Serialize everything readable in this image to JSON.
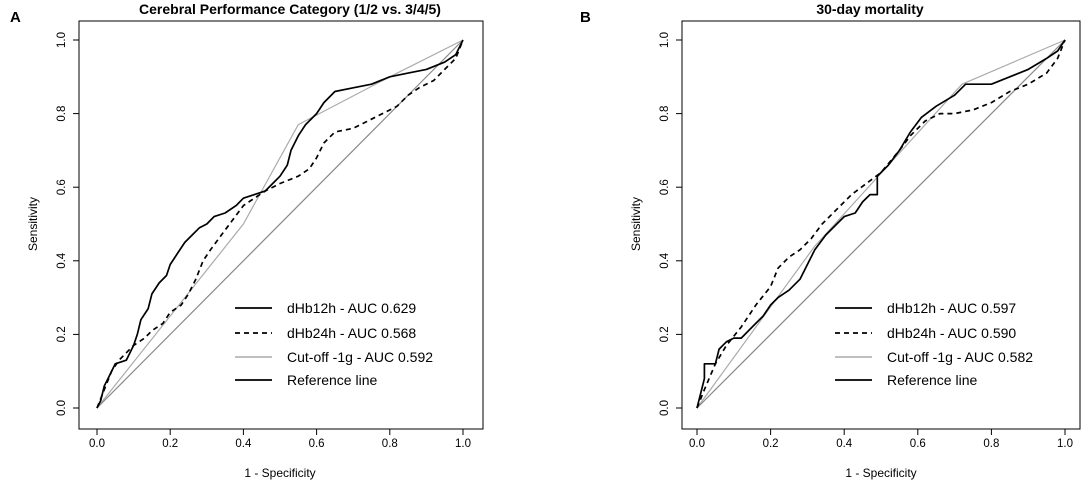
{
  "chart_data": [
    {
      "type": "line",
      "panel_label": "A",
      "title": "Cerebral Performance Category (1/2 vs. 3/4/5)",
      "xlabel": "1 - Specificity",
      "ylabel": "Sensitivity",
      "xlim": [
        0,
        1
      ],
      "ylim": [
        0,
        1
      ],
      "x_ticks": [
        "0.0",
        "0.2",
        "0.4",
        "0.6",
        "0.8",
        "1.0"
      ],
      "y_ticks": [
        "0.0",
        "0.2",
        "0.4",
        "0.6",
        "0.8",
        "1.0"
      ],
      "grid": false,
      "legend_position": "bottom-right",
      "series": [
        {
          "name": "dHb12h - AUC 0.629",
          "color": "#000000",
          "dash": "solid",
          "points": [
            [
              0,
              0
            ],
            [
              0.01,
              0.02
            ],
            [
              0.02,
              0.06
            ],
            [
              0.03,
              0.08
            ],
            [
              0.04,
              0.1
            ],
            [
              0.05,
              0.12
            ],
            [
              0.08,
              0.13
            ],
            [
              0.1,
              0.17
            ],
            [
              0.11,
              0.2
            ],
            [
              0.12,
              0.24
            ],
            [
              0.14,
              0.27
            ],
            [
              0.15,
              0.31
            ],
            [
              0.17,
              0.34
            ],
            [
              0.19,
              0.36
            ],
            [
              0.2,
              0.39
            ],
            [
              0.22,
              0.42
            ],
            [
              0.24,
              0.45
            ],
            [
              0.26,
              0.47
            ],
            [
              0.28,
              0.49
            ],
            [
              0.3,
              0.5
            ],
            [
              0.32,
              0.52
            ],
            [
              0.35,
              0.53
            ],
            [
              0.38,
              0.55
            ],
            [
              0.4,
              0.57
            ],
            [
              0.43,
              0.58
            ],
            [
              0.46,
              0.59
            ],
            [
              0.48,
              0.61
            ],
            [
              0.5,
              0.63
            ],
            [
              0.52,
              0.66
            ],
            [
              0.53,
              0.7
            ],
            [
              0.55,
              0.74
            ],
            [
              0.57,
              0.77
            ],
            [
              0.6,
              0.8
            ],
            [
              0.62,
              0.83
            ],
            [
              0.65,
              0.86
            ],
            [
              0.7,
              0.87
            ],
            [
              0.75,
              0.88
            ],
            [
              0.8,
              0.9
            ],
            [
              0.85,
              0.91
            ],
            [
              0.9,
              0.92
            ],
            [
              0.95,
              0.94
            ],
            [
              0.98,
              0.96
            ],
            [
              1,
              1
            ]
          ]
        },
        {
          "name": "dHb24h - AUC 0.568",
          "color": "#000000",
          "dash": "dashed",
          "points": [
            [
              0,
              0
            ],
            [
              0.02,
              0.05
            ],
            [
              0.04,
              0.1
            ],
            [
              0.06,
              0.13
            ],
            [
              0.08,
              0.15
            ],
            [
              0.1,
              0.17
            ],
            [
              0.13,
              0.19
            ],
            [
              0.15,
              0.21
            ],
            [
              0.18,
              0.23
            ],
            [
              0.2,
              0.26
            ],
            [
              0.23,
              0.28
            ],
            [
              0.25,
              0.31
            ],
            [
              0.27,
              0.35
            ],
            [
              0.29,
              0.4
            ],
            [
              0.31,
              0.43
            ],
            [
              0.34,
              0.47
            ],
            [
              0.37,
              0.51
            ],
            [
              0.4,
              0.55
            ],
            [
              0.43,
              0.57
            ],
            [
              0.46,
              0.59
            ],
            [
              0.5,
              0.61
            ],
            [
              0.55,
              0.63
            ],
            [
              0.58,
              0.65
            ],
            [
              0.6,
              0.68
            ],
            [
              0.62,
              0.72
            ],
            [
              0.65,
              0.75
            ],
            [
              0.7,
              0.76
            ],
            [
              0.74,
              0.78
            ],
            [
              0.78,
              0.8
            ],
            [
              0.82,
              0.82
            ],
            [
              0.85,
              0.85
            ],
            [
              0.88,
              0.87
            ],
            [
              0.92,
              0.89
            ],
            [
              0.95,
              0.92
            ],
            [
              0.98,
              0.95
            ],
            [
              1,
              1
            ]
          ]
        },
        {
          "name": "Cut-off -1g  - AUC 0.592",
          "color": "#aaaaaa",
          "dash": "solid",
          "points": [
            [
              0,
              0
            ],
            [
              0.4,
              0.5
            ],
            [
              0.55,
              0.77
            ],
            [
              0.8,
              0.9
            ],
            [
              1,
              1
            ]
          ]
        },
        {
          "name": "Reference line",
          "color": "#888888",
          "dash": "solid",
          "points": [
            [
              0,
              0
            ],
            [
              1,
              1
            ]
          ]
        }
      ]
    },
    {
      "type": "line",
      "panel_label": "B",
      "title": "30-day mortality",
      "xlabel": "1 - Specificity",
      "ylabel": "Sensitivity",
      "xlim": [
        0,
        1
      ],
      "ylim": [
        0,
        1
      ],
      "x_ticks": [
        "0.0",
        "0.2",
        "0.4",
        "0.6",
        "0.8",
        "1.0"
      ],
      "y_ticks": [
        "0.0",
        "0.2",
        "0.4",
        "0.6",
        "0.8",
        "1.0"
      ],
      "grid": false,
      "legend_position": "bottom-right",
      "series": [
        {
          "name": "dHb12h - AUC 0.597",
          "color": "#000000",
          "dash": "solid",
          "points": [
            [
              0,
              0
            ],
            [
              0.01,
              0.04
            ],
            [
              0.02,
              0.08
            ],
            [
              0.02,
              0.12
            ],
            [
              0.05,
              0.12
            ],
            [
              0.06,
              0.16
            ],
            [
              0.08,
              0.18
            ],
            [
              0.1,
              0.19
            ],
            [
              0.12,
              0.19
            ],
            [
              0.15,
              0.22
            ],
            [
              0.18,
              0.25
            ],
            [
              0.2,
              0.28
            ],
            [
              0.22,
              0.3
            ],
            [
              0.25,
              0.32
            ],
            [
              0.28,
              0.35
            ],
            [
              0.3,
              0.39
            ],
            [
              0.32,
              0.43
            ],
            [
              0.35,
              0.47
            ],
            [
              0.38,
              0.5
            ],
            [
              0.4,
              0.52
            ],
            [
              0.43,
              0.53
            ],
            [
              0.45,
              0.56
            ],
            [
              0.47,
              0.58
            ],
            [
              0.49,
              0.58
            ],
            [
              0.49,
              0.63
            ],
            [
              0.52,
              0.66
            ],
            [
              0.55,
              0.7
            ],
            [
              0.58,
              0.75
            ],
            [
              0.61,
              0.79
            ],
            [
              0.65,
              0.82
            ],
            [
              0.7,
              0.85
            ],
            [
              0.73,
              0.88
            ],
            [
              0.8,
              0.88
            ],
            [
              0.85,
              0.9
            ],
            [
              0.9,
              0.92
            ],
            [
              0.95,
              0.95
            ],
            [
              0.98,
              0.97
            ],
            [
              1,
              1
            ]
          ]
        },
        {
          "name": "dHb24h - AUC 0.590",
          "color": "#000000",
          "dash": "dashed",
          "points": [
            [
              0,
              0
            ],
            [
              0.02,
              0.05
            ],
            [
              0.05,
              0.12
            ],
            [
              0.08,
              0.17
            ],
            [
              0.12,
              0.22
            ],
            [
              0.16,
              0.28
            ],
            [
              0.2,
              0.33
            ],
            [
              0.22,
              0.38
            ],
            [
              0.25,
              0.41
            ],
            [
              0.28,
              0.43
            ],
            [
              0.31,
              0.46
            ],
            [
              0.34,
              0.5
            ],
            [
              0.38,
              0.54
            ],
            [
              0.42,
              0.58
            ],
            [
              0.46,
              0.61
            ],
            [
              0.5,
              0.64
            ],
            [
              0.55,
              0.7
            ],
            [
              0.58,
              0.74
            ],
            [
              0.62,
              0.78
            ],
            [
              0.66,
              0.8
            ],
            [
              0.7,
              0.8
            ],
            [
              0.75,
              0.81
            ],
            [
              0.8,
              0.83
            ],
            [
              0.85,
              0.86
            ],
            [
              0.9,
              0.88
            ],
            [
              0.95,
              0.91
            ],
            [
              0.98,
              0.95
            ],
            [
              1,
              1
            ]
          ]
        },
        {
          "name": "Cut-off -1g  - AUC 0.582",
          "color": "#aaaaaa",
          "dash": "solid",
          "points": [
            [
              0,
              0
            ],
            [
              0.32,
              0.44
            ],
            [
              0.72,
              0.88
            ],
            [
              1,
              1
            ]
          ]
        },
        {
          "name": "Reference line",
          "color": "#888888",
          "dash": "solid",
          "points": [
            [
              0,
              0
            ],
            [
              1,
              1
            ]
          ]
        }
      ]
    }
  ]
}
